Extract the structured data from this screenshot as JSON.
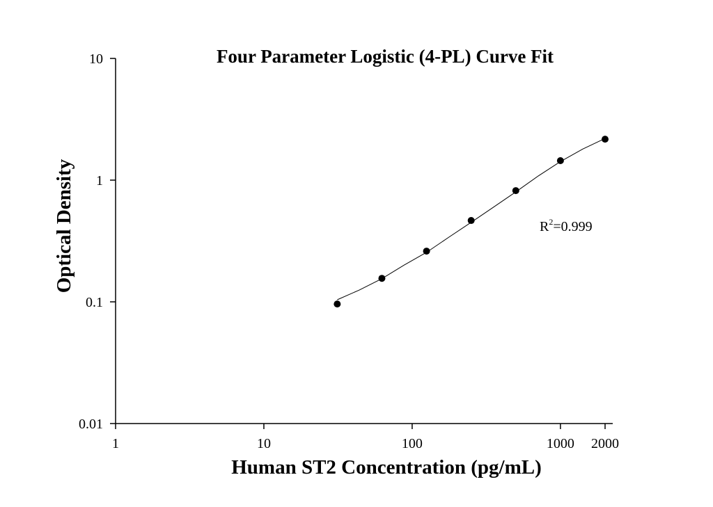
{
  "chart_data": {
    "type": "scatter",
    "title": "Four Parameter Logistic (4-PL) Curve Fit",
    "x_label": "Human ST2 Concentration (pg/mL)",
    "y_label": "Optical Density",
    "log_x": true,
    "log_y": true,
    "xlim": [
      1,
      2000
    ],
    "ylim": [
      0.01,
      10
    ],
    "xticks": [
      1,
      10,
      100,
      1000,
      2000
    ],
    "yticks": [
      0.01,
      0.1,
      1,
      10
    ],
    "color": "#000000",
    "x": [
      31.25,
      62.5,
      125,
      250,
      500,
      1000,
      2000
    ],
    "values": [
      0.096,
      0.156,
      0.261,
      0.466,
      0.82,
      1.445,
      2.17
    ],
    "curve": {
      "x": [
        31.25,
        44,
        62.5,
        88,
        125,
        177,
        250,
        354,
        500,
        707,
        1000,
        1414,
        2000
      ],
      "values": [
        0.104,
        0.125,
        0.155,
        0.2,
        0.255,
        0.34,
        0.45,
        0.6,
        0.8,
        1.08,
        1.42,
        1.8,
        2.2
      ]
    },
    "annotation": [
      "R",
      "2",
      "=0.999"
    ]
  }
}
